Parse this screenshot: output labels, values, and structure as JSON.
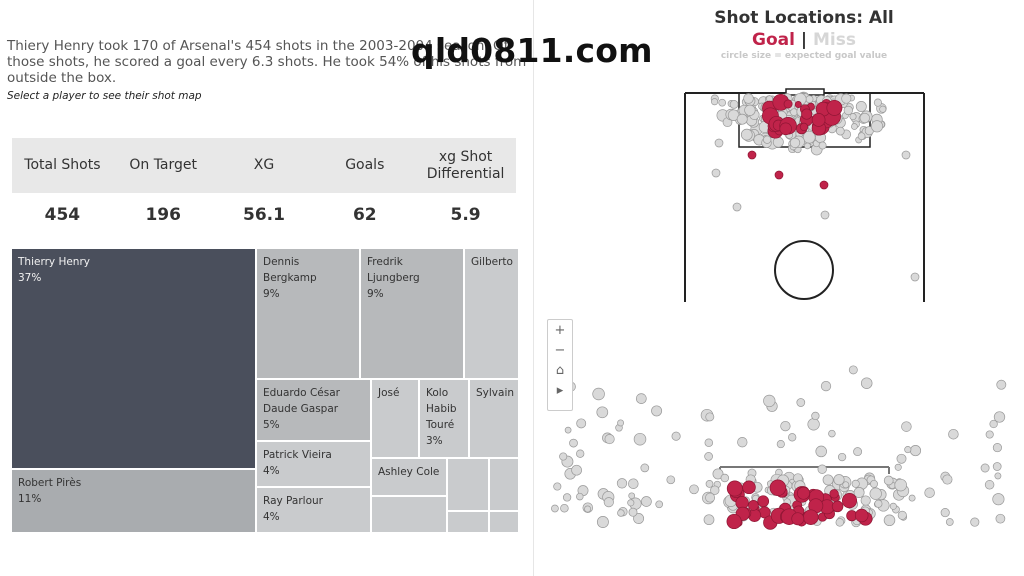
{
  "summary": {
    "line": "Thiery Henry took 170 of Arsenal's 454 shots in the 2003-2004 season. Of those shots, he scored a goal every 6.3 shots. He took 54% of his shots from outside the box.",
    "hint": "Select a player to see their shot map"
  },
  "watermark": "qld0811.com",
  "stats": {
    "headers": [
      "Total Shots",
      "On Target",
      "XG",
      "Goals",
      "xg Shot Differential"
    ],
    "values": [
      "454",
      "196",
      "56.1",
      "62",
      "5.9"
    ]
  },
  "treemap": [
    {
      "name": "Thierry Henry",
      "pct": "37%"
    },
    {
      "name": "Robert Pirès",
      "pct": "11%"
    },
    {
      "name": "Dennis Bergkamp",
      "pct": "9%"
    },
    {
      "name": "Fredrik Ljungberg",
      "pct": "9%"
    },
    {
      "name": "Gilberto",
      "pct": ""
    },
    {
      "name": "Eduardo César Daude Gaspar",
      "pct": "5%"
    },
    {
      "name": "José",
      "pct": ""
    },
    {
      "name": "Kolo Habib Touré",
      "pct": "3%"
    },
    {
      "name": "Sylvain",
      "pct": ""
    },
    {
      "name": "Patrick Vieira",
      "pct": "4%"
    },
    {
      "name": "Ashley Cole",
      "pct": ""
    },
    {
      "name": "Ray Parlour",
      "pct": "4%"
    }
  ],
  "shotmap": {
    "title": "Shot Locations: All",
    "goal_label": "Goal",
    "separator": "|",
    "miss_label": "Miss",
    "caption": "circle size = expected goal value",
    "goal_color": "#c0234a",
    "miss_color": "#d9d9d9"
  },
  "zoom_controls": {
    "zoom_in": "+",
    "zoom_out": "−",
    "home": "⌂",
    "play": "▸"
  }
}
